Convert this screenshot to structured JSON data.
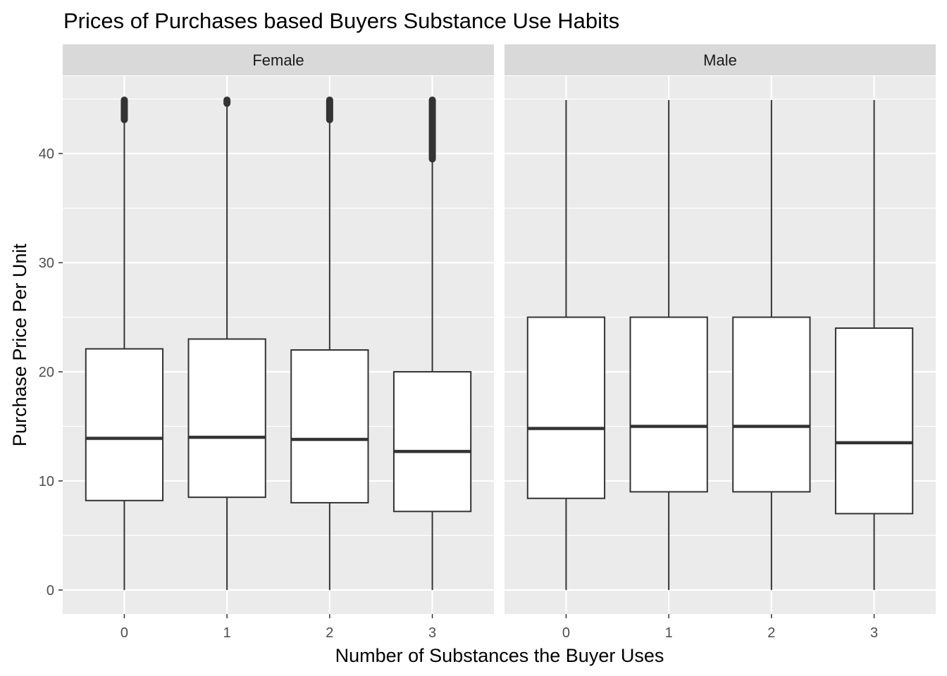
{
  "chart_data": {
    "type": "boxplot",
    "title": "Prices of Purchases based Buyers Substance Use Habits",
    "xlabel": "Number of Substances the Buyer Uses",
    "ylabel": "Purchase Price Per Unit",
    "categories": [
      "0",
      "1",
      "2",
      "3"
    ],
    "y_ticks": [
      0,
      10,
      20,
      30,
      40
    ],
    "ylim": [
      -2.2,
      47.1
    ],
    "grid": true,
    "legend": "none",
    "colors": {
      "panel_background": "#ebebeb",
      "strip_background": "#d9d9d9",
      "grid": "#ffffff",
      "box_fill": "#ffffff",
      "box_line": "#333333"
    },
    "panels": [
      {
        "label": "Female",
        "boxes": [
          {
            "category": "0",
            "min": 0,
            "q1": 8.2,
            "median": 13.9,
            "q3": 22.1,
            "whisker_high": 43.1,
            "outliers_range": [
              43.1,
              44.9
            ]
          },
          {
            "category": "1",
            "min": 0,
            "q1": 8.5,
            "median": 14.0,
            "q3": 23.0,
            "whisker_high": 44.6,
            "outliers_range": [
              44.6,
              44.9
            ]
          },
          {
            "category": "2",
            "min": 0,
            "q1": 8.0,
            "median": 13.8,
            "q3": 22.0,
            "whisker_high": 43.1,
            "outliers_range": [
              43.1,
              44.9
            ]
          },
          {
            "category": "3",
            "min": 0,
            "q1": 7.2,
            "median": 12.7,
            "q3": 20.0,
            "whisker_high": 39.5,
            "outliers_range": [
              39.5,
              44.9
            ]
          }
        ]
      },
      {
        "label": "Male",
        "boxes": [
          {
            "category": "0",
            "min": 0,
            "q1": 8.4,
            "median": 14.8,
            "q3": 25.0,
            "whisker_high": 44.9
          },
          {
            "category": "1",
            "min": 0,
            "q1": 9.0,
            "median": 15.0,
            "q3": 25.0,
            "whisker_high": 44.9
          },
          {
            "category": "2",
            "min": 0,
            "q1": 9.0,
            "median": 15.0,
            "q3": 25.0,
            "whisker_high": 44.9
          },
          {
            "category": "3",
            "min": 0,
            "q1": 7.0,
            "median": 13.5,
            "q3": 24.0,
            "whisker_high": 44.9
          }
        ]
      }
    ]
  }
}
